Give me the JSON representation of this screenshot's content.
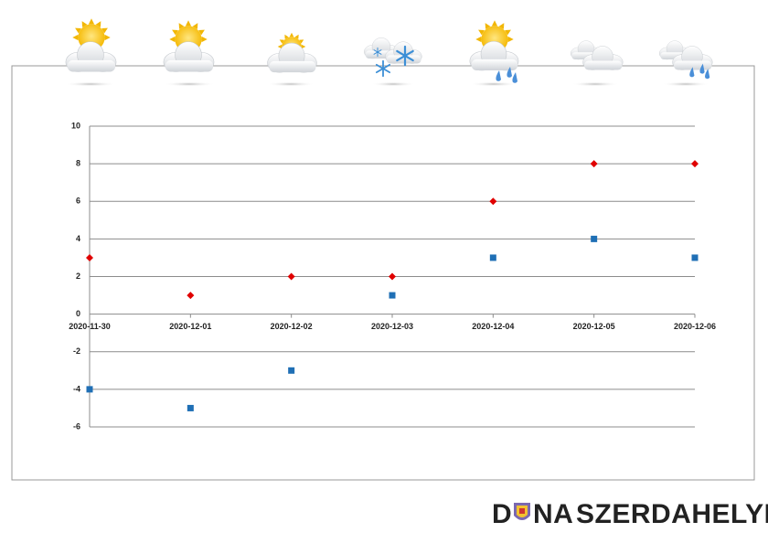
{
  "chart_data": {
    "type": "scatter",
    "categories": [
      "2020-11-30",
      "2020-12-01",
      "2020-12-02",
      "2020-12-03",
      "2020-12-04",
      "2020-12-05",
      "2020-12-06"
    ],
    "series": [
      {
        "color": "#e00000",
        "marker": "diamond",
        "values": [
          3,
          1,
          2,
          2,
          6,
          8,
          8
        ]
      },
      {
        "color": "#1f6fb5",
        "marker": "square",
        "values": [
          -4,
          -5,
          -3,
          1,
          3,
          4,
          3
        ]
      }
    ],
    "ylim": [
      -6,
      10
    ],
    "yticks": [
      -6,
      -4,
      -2,
      0,
      2,
      4,
      6,
      8,
      10
    ],
    "grid": true
  },
  "logo": {
    "first": "D",
    "second": "NA",
    "rest": "SZERDAHELYI"
  }
}
